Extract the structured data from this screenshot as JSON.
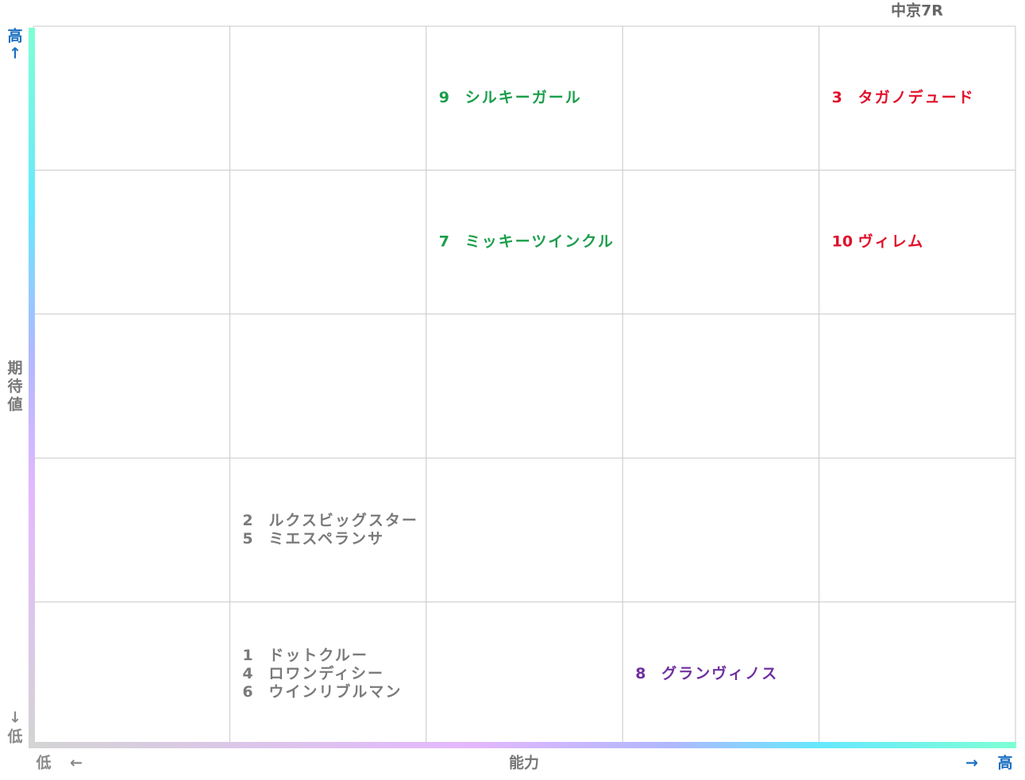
{
  "title": "中京7R",
  "y_axis": {
    "label": "期待値",
    "high": "高",
    "high_arrow": "↑",
    "low_arrow": "↓",
    "low": "低"
  },
  "x_axis": {
    "label": "能力",
    "low": "低",
    "low_arrow": "←",
    "high_arrow": "→",
    "high": "高"
  },
  "grid": {
    "rows": [
      [
        [],
        [],
        [
          {
            "number": 9,
            "name": "シルキーガール",
            "color": "#1a9e4a"
          }
        ],
        [],
        [
          {
            "number": 3,
            "name": "タガノデュード",
            "color": "#e0102a"
          }
        ]
      ],
      [
        [],
        [],
        [
          {
            "number": 7,
            "name": "ミッキーツインクル",
            "color": "#1a9e4a"
          }
        ],
        [],
        [
          {
            "number": 10,
            "name": "ヴィレム",
            "color": "#e0102a"
          }
        ]
      ],
      [
        [],
        [],
        [],
        [],
        []
      ],
      [
        [],
        [
          {
            "number": 2,
            "name": "ルクスビッグスター",
            "color": "#7a7a7a"
          },
          {
            "number": 5,
            "name": "ミエスペランサ",
            "color": "#7a7a7a"
          }
        ],
        [],
        [],
        []
      ],
      [
        [],
        [
          {
            "number": 1,
            "name": "ドットクルー",
            "color": "#7a7a7a"
          },
          {
            "number": 4,
            "name": "ロワンディシー",
            "color": "#7a7a7a"
          },
          {
            "number": 6,
            "name": "ウインリブルマン",
            "color": "#7a7a7a"
          }
        ],
        [],
        [
          {
            "number": 8,
            "name": "グランヴィノス",
            "color": "#7030a0"
          }
        ],
        []
      ]
    ]
  }
}
